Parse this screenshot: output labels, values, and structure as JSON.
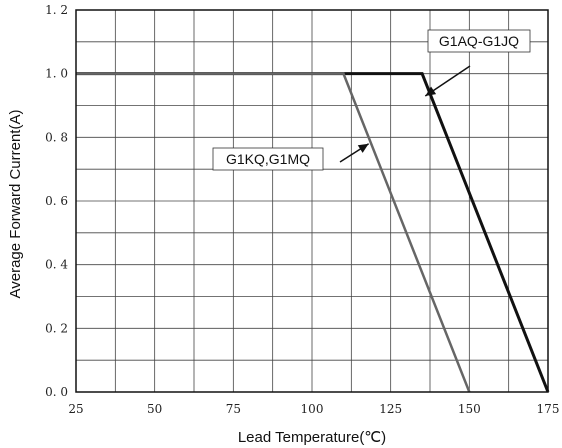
{
  "chart_data": {
    "type": "line",
    "xlabel": "Lead Temperature(℃)",
    "ylabel": "Average Forward Current(A)",
    "xlim": [
      25,
      175
    ],
    "ylim": [
      0,
      1.2
    ],
    "x_ticks": [
      "25",
      "50",
      "75",
      "100",
      "125",
      "150",
      "175"
    ],
    "y_ticks": [
      "0. 0",
      "0. 2",
      "0. 4",
      "0. 6",
      "0. 8",
      "1. 0",
      "1. 2"
    ],
    "grid": true,
    "series": [
      {
        "name": "G1AQ-G1JQ",
        "color": "#111111",
        "points": [
          [
            25,
            1.0
          ],
          [
            135,
            1.0
          ],
          [
            175,
            0.0
          ]
        ]
      },
      {
        "name": "G1KQ,G1MQ",
        "color": "#666666",
        "points": [
          [
            25,
            1.0
          ],
          [
            110,
            1.0
          ],
          [
            150,
            0.0
          ]
        ]
      }
    ],
    "annotations": [
      {
        "text": "G1AQ-G1JQ",
        "arrow_to": [
          136,
          0.93
        ]
      },
      {
        "text": "G1KQ,G1MQ",
        "arrow_to": [
          118,
          0.78
        ]
      }
    ]
  }
}
